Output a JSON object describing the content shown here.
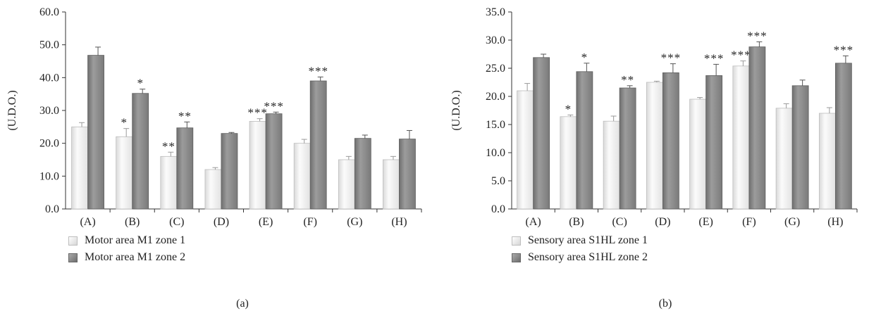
{
  "chart_data": [
    {
      "type": "bar",
      "panel_label": "(a)",
      "ylabel": "(U.D.O.)",
      "ylim": [
        0,
        60
      ],
      "yticks": [
        "0.0",
        "10.0",
        "20.0",
        "30.0",
        "40.0",
        "50.0",
        "60.0"
      ],
      "categories": [
        "(A)",
        "(B)",
        "(C)",
        "(D)",
        "(E)",
        "(F)",
        "(G)",
        "(H)"
      ],
      "series": [
        {
          "name": "Motor area M1 zone 1",
          "color": "#ececec",
          "values": [
            25.0,
            22.0,
            16.0,
            12.0,
            26.7,
            20.0,
            15.0,
            15.0
          ],
          "errors": [
            1.3,
            2.5,
            1.3,
            0.6,
            0.8,
            1.2,
            1.0,
            1.0
          ],
          "significance": [
            "",
            "*",
            "**",
            "",
            "***",
            "",
            "",
            ""
          ]
        },
        {
          "name": "Motor area M1 zone 2",
          "color": "#8a8a8a",
          "values": [
            46.8,
            35.2,
            24.7,
            23.0,
            29.0,
            39.0,
            21.5,
            21.3
          ],
          "errors": [
            2.5,
            1.3,
            1.8,
            0.3,
            0.5,
            1.2,
            1.0,
            2.6
          ],
          "significance": [
            "",
            "*",
            "**",
            "",
            "***",
            "***",
            "",
            ""
          ]
        }
      ]
    },
    {
      "type": "bar",
      "panel_label": "(b)",
      "ylabel": "(U.D.O.)",
      "ylim": [
        0,
        35
      ],
      "yticks": [
        "0.0",
        "5.0",
        "10.0",
        "15.0",
        "20.0",
        "25.0",
        "30.0",
        "35.0"
      ],
      "categories": [
        "(A)",
        "(B)",
        "(C)",
        "(D)",
        "(E)",
        "(F)",
        "(G)",
        "(H)"
      ],
      "series": [
        {
          "name": "Sensory area S1HL zone 1",
          "color": "#ececec",
          "values": [
            21.0,
            16.4,
            15.6,
            22.5,
            19.5,
            25.4,
            17.9,
            17.0
          ],
          "errors": [
            1.3,
            0.3,
            0.9,
            0.2,
            0.3,
            0.9,
            0.8,
            1.0
          ],
          "significance": [
            "",
            "*",
            "",
            "",
            "",
            "***",
            "",
            ""
          ]
        },
        {
          "name": "Sensory area S1HL zone 2",
          "color": "#8a8a8a",
          "values": [
            26.9,
            24.4,
            21.5,
            24.2,
            23.7,
            28.8,
            21.9,
            25.9
          ],
          "errors": [
            0.6,
            1.5,
            0.4,
            1.6,
            2.0,
            0.9,
            1.0,
            1.3
          ],
          "significance": [
            "",
            "*",
            "**",
            "***",
            "***",
            "***",
            "",
            "***"
          ]
        }
      ]
    }
  ]
}
